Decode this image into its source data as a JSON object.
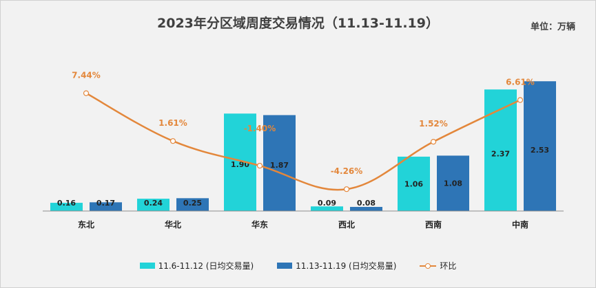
{
  "chart_data": {
    "type": "bar",
    "title": "2023年分区域周度交易情况（11.13-11.19）",
    "unit_label": "单位：万辆",
    "categories": [
      "东北",
      "华北",
      "华东",
      "西北",
      "西南",
      "中南"
    ],
    "series": [
      {
        "name": "11.6-11.12 (日均交易量)",
        "values": [
          0.16,
          0.24,
          1.9,
          0.09,
          1.06,
          2.37
        ],
        "color": "#22d3d8"
      },
      {
        "name": "11.13-11.19  (日均交易量)",
        "values": [
          0.17,
          0.25,
          1.87,
          0.08,
          1.08,
          2.53
        ],
        "color": "#2e75b6"
      }
    ],
    "value_labels": [
      [
        "0.16",
        "0.24",
        "1.90",
        "0.09",
        "1.06",
        "2.37"
      ],
      [
        "0.17",
        "0.25",
        "1.87",
        "0.08",
        "1.08",
        "2.53"
      ]
    ],
    "line_series": {
      "name": "环比",
      "values": [
        7.44,
        1.61,
        -1.4,
        -4.26,
        1.52,
        6.61
      ],
      "labels": [
        "7.44%",
        "1.61%",
        "-1.40%",
        "-4.26%",
        "1.52%",
        "6.61%"
      ],
      "color": "#e3873b"
    },
    "ylim": [
      0,
      2.6
    ],
    "line_ylim": [
      -5.5,
      9.0
    ],
    "grid": false,
    "legend_position": "bottom"
  }
}
